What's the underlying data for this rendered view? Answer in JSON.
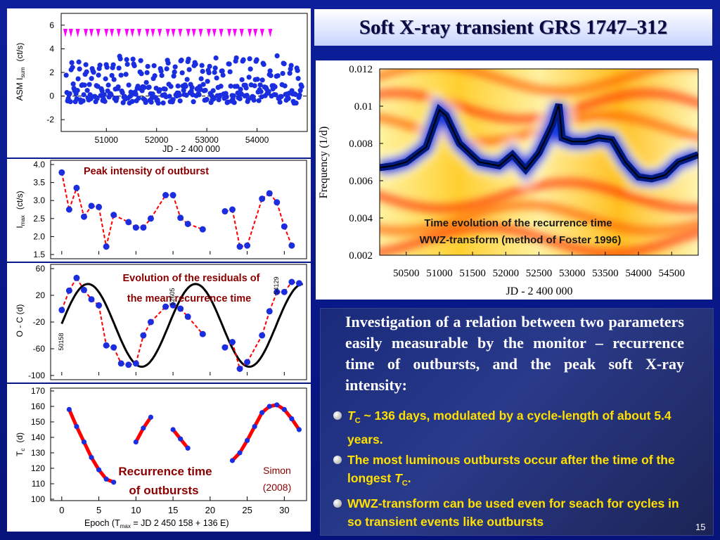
{
  "slide": {
    "title": "Soft X-ray transient GRS 1747–312",
    "page_number": "15",
    "intro_text": "Investigation of a relation  between two parameters  easily   measurable  by  the monitor – recurrence time of outbursts, and the peak soft X-ray intensity:",
    "bullets": [
      {
        "parts": [
          "T",
          "C",
          " ~ 136 days, modulated  by a cycle-length of about 5.4 years."
        ]
      },
      {
        "parts": [
          "The most  luminous  outbursts  occur after the time of the longest ",
          "T",
          "C",
          "."
        ]
      },
      {
        "parts": [
          "WWZ-transform  can  be used  even  for  seach for cycles in so transient events like outbursts"
        ]
      }
    ]
  },
  "colors": {
    "background": "#0a1a8c",
    "points": "#1a2ee0",
    "fit": "#ff0000",
    "markers": "#ff00ff",
    "highlight": "#ffe000"
  },
  "chart_data": [
    {
      "type": "scatter",
      "ylabel_main": "ASM  I",
      "ylabel_sub": "sum",
      "ylabel_unit": "(ct/s)",
      "xlabel": "JD - 2 400 000",
      "xticks": [
        "51000",
        "52000",
        "53000",
        "54000"
      ],
      "yticks": [
        "6",
        "4",
        "2",
        "0",
        "-2"
      ],
      "xlim": [
        50100,
        55000
      ],
      "ylim": [
        -3,
        7
      ],
      "outburst_marker_count": 31,
      "note": "dense light curve of outbursts, blue points with red connecting lines; dashed zero line"
    },
    {
      "type": "scatter",
      "annotation": "Peak intensity of outburst",
      "ylabel_main": "I",
      "ylabel_sub": "max",
      "ylabel_unit": "(ct/s)",
      "yticks": [
        "4.0",
        "3.5",
        "3.0",
        "2.5",
        "2.0",
        "1.5"
      ],
      "ylim": [
        1.5,
        4.0
      ],
      "epoch": [
        0,
        1,
        2,
        3,
        4,
        5,
        6,
        7,
        9,
        10,
        11,
        12,
        14,
        15,
        16,
        17,
        19,
        22,
        23,
        24,
        25,
        27,
        28,
        29,
        30,
        31
      ],
      "values": [
        3.78,
        2.75,
        3.35,
        2.55,
        2.85,
        2.82,
        1.72,
        2.6,
        2.4,
        2.25,
        2.25,
        2.5,
        3.15,
        3.15,
        2.52,
        2.35,
        2.2,
        2.7,
        2.75,
        1.72,
        1.75,
        3.05,
        3.2,
        2.95,
        2.28,
        1.75
      ]
    },
    {
      "type": "scatter",
      "annotation": "Evolution of the residuals of the mean recurrence time",
      "ylabel": "O - C    (d)",
      "yticks": [
        "60",
        "20",
        "-20",
        "-60",
        "-100"
      ],
      "ylim": [
        -100,
        60
      ],
      "jd_labels": [
        "50158",
        "54129",
        "52605"
      ],
      "epoch": [
        0,
        1,
        2,
        3,
        4,
        5,
        6,
        7,
        8,
        9,
        10,
        11,
        12,
        14,
        15,
        16,
        17,
        19,
        22,
        23,
        24,
        25,
        27,
        28,
        29,
        30,
        31,
        32
      ],
      "values": [
        -2,
        27,
        46,
        28,
        14,
        5,
        -55,
        -58,
        -82,
        -84,
        -82,
        -40,
        -20,
        3,
        5,
        0,
        -12,
        -38,
        -58,
        -50,
        -90,
        -80,
        -40,
        -4,
        25,
        25,
        40,
        38
      ]
    },
    {
      "type": "line",
      "annotation": "Recurrence time of outbursts",
      "credit": "Simon (2008)",
      "ylabel_main": "T",
      "ylabel_sub": "c",
      "ylabel_unit": "(d)",
      "xlabel": "Epoch     (T",
      "xlabel_sub": "max",
      "xlabel_rest": " = JD 2 450 158 + 136 E)",
      "xticks": [
        "0",
        "5",
        "10",
        "15",
        "20",
        "25",
        "30"
      ],
      "yticks": [
        "170",
        "160",
        "150",
        "140",
        "130",
        "120",
        "110",
        "100"
      ],
      "xlim": [
        -1.5,
        33
      ],
      "ylim": [
        100,
        170
      ],
      "series": [
        {
          "x": [
            1,
            2,
            3,
            4,
            5,
            6,
            7
          ],
          "values": [
            158,
            147,
            137,
            127,
            119,
            113,
            111
          ]
        },
        {
          "x": [
            10,
            11,
            12
          ],
          "values": [
            137,
            146,
            153
          ]
        },
        {
          "x": [
            15,
            16,
            17
          ],
          "values": [
            145,
            139,
            133
          ]
        },
        {
          "x": [
            23,
            24,
            25,
            26,
            27,
            28,
            29,
            30,
            31,
            32
          ],
          "values": [
            125,
            130,
            138,
            147,
            156,
            160,
            161,
            158,
            152,
            145
          ]
        }
      ]
    },
    {
      "type": "heatmap",
      "annotation_line1": "Time evolution of the recurrence time",
      "annotation_line2": "WWZ-transform (method of Foster 1996)",
      "ylabel": "Frequency (1/d)",
      "xlabel": "JD - 2 400 000",
      "xticks": [
        "50500",
        "51000",
        "51500",
        "52000",
        "52500",
        "53000",
        "53500",
        "54000",
        "54500"
      ],
      "yticks": [
        "0.012",
        "0.01",
        "0.008",
        "0.006",
        "0.004",
        "0.002"
      ],
      "xlim": [
        50100,
        54900
      ],
      "ylim": [
        0.002,
        0.012
      ],
      "ridge_jd": [
        50100,
        50300,
        50500,
        50800,
        51000,
        51100,
        51300,
        51600,
        51900,
        52100,
        52300,
        52500,
        52700,
        52800,
        52850,
        53000,
        53200,
        53400,
        53600,
        53800,
        54000,
        54200,
        54400,
        54600,
        54900
      ],
      "ridge_freq": [
        0.0067,
        0.0068,
        0.007,
        0.0078,
        0.0098,
        0.0095,
        0.008,
        0.007,
        0.0068,
        0.0074,
        0.0066,
        0.0075,
        0.009,
        0.0101,
        0.0083,
        0.0081,
        0.0081,
        0.0083,
        0.0082,
        0.007,
        0.0062,
        0.0061,
        0.0063,
        0.007,
        0.0074
      ]
    }
  ]
}
